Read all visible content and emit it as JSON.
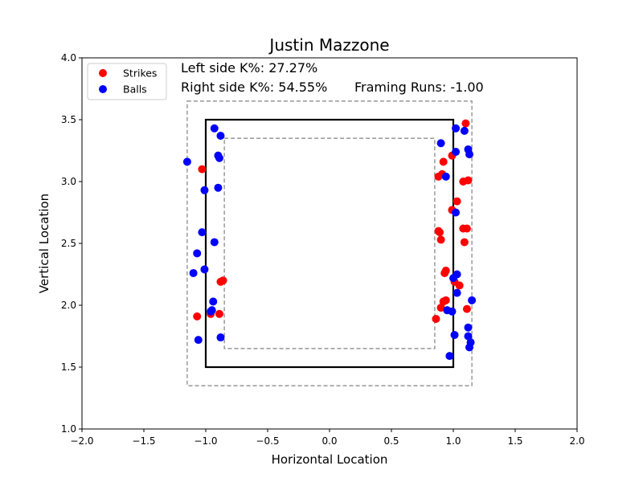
{
  "chart_data": {
    "type": "scatter",
    "title": "Justin Mazzone",
    "xlabel": "Horizontal Location",
    "ylabel": "Vertical Location",
    "xlim": [
      -2.0,
      2.0
    ],
    "ylim": [
      1.0,
      4.0
    ],
    "xticks": [
      "−2.0",
      "−1.5",
      "−1.0",
      "−0.5",
      "0.0",
      "0.5",
      "1.0",
      "1.5",
      "2.0"
    ],
    "yticks": [
      "1.0",
      "1.5",
      "2.0",
      "2.5",
      "3.0",
      "3.5",
      "4.0"
    ],
    "grid": false,
    "legend_placement": "top-left",
    "annotations": {
      "left_k": "Left side K%: 27.27%",
      "right_k": "Right side K%: 54.55%",
      "framing": "Framing Runs: -1.00"
    },
    "strike_zone": {
      "x": [
        -1.0,
        1.0
      ],
      "y": [
        1.5,
        3.5
      ]
    },
    "outer_zone": {
      "x": [
        -1.15,
        1.15
      ],
      "y": [
        1.35,
        3.65
      ]
    },
    "inner_zone": {
      "x": [
        -0.85,
        0.85
      ],
      "y": [
        1.65,
        3.35
      ]
    },
    "series": [
      {
        "name": "Strikes",
        "color": "#ff0000",
        "points": [
          [
            -1.03,
            3.1
          ],
          [
            -0.88,
            2.19
          ],
          [
            -0.86,
            2.2
          ],
          [
            -1.07,
            1.91
          ],
          [
            -0.96,
            1.93
          ],
          [
            -0.89,
            1.93
          ],
          [
            1.1,
            3.47
          ],
          [
            0.92,
            3.16
          ],
          [
            0.99,
            3.21
          ],
          [
            0.91,
            3.06
          ],
          [
            0.88,
            3.04
          ],
          [
            1.08,
            3.0
          ],
          [
            1.12,
            3.01
          ],
          [
            1.03,
            2.84
          ],
          [
            0.99,
            2.77
          ],
          [
            1.08,
            2.62
          ],
          [
            1.11,
            2.62
          ],
          [
            0.88,
            2.6
          ],
          [
            0.89,
            2.59
          ],
          [
            0.9,
            2.53
          ],
          [
            1.09,
            2.51
          ],
          [
            0.94,
            2.28
          ],
          [
            0.93,
            2.26
          ],
          [
            1.01,
            2.19
          ],
          [
            1.05,
            2.16
          ],
          [
            0.94,
            2.04
          ],
          [
            0.92,
            2.03
          ],
          [
            0.9,
            1.98
          ],
          [
            1.11,
            1.97
          ],
          [
            0.86,
            1.89
          ]
        ]
      },
      {
        "name": "Balls",
        "color": "#0000ff",
        "points": [
          [
            -1.15,
            3.16
          ],
          [
            -0.93,
            3.43
          ],
          [
            -0.88,
            3.37
          ],
          [
            -0.9,
            3.21
          ],
          [
            -0.89,
            3.19
          ],
          [
            -1.01,
            2.93
          ],
          [
            -0.9,
            2.95
          ],
          [
            -1.03,
            2.59
          ],
          [
            -0.93,
            2.51
          ],
          [
            -1.07,
            2.42
          ],
          [
            -1.1,
            2.26
          ],
          [
            -1.01,
            2.29
          ],
          [
            -0.95,
            1.96
          ],
          [
            -0.94,
            2.03
          ],
          [
            -0.96,
            1.95
          ],
          [
            -0.88,
            1.74
          ],
          [
            -1.06,
            1.72
          ],
          [
            1.02,
            3.43
          ],
          [
            1.09,
            3.41
          ],
          [
            0.9,
            3.31
          ],
          [
            1.02,
            3.24
          ],
          [
            1.12,
            3.26
          ],
          [
            1.13,
            3.22
          ],
          [
            0.94,
            3.04
          ],
          [
            1.02,
            2.75
          ],
          [
            1.03,
            2.25
          ],
          [
            1.0,
            2.22
          ],
          [
            1.03,
            2.1
          ],
          [
            0.95,
            1.96
          ],
          [
            0.99,
            1.95
          ],
          [
            1.15,
            2.04
          ],
          [
            1.12,
            1.82
          ],
          [
            1.12,
            1.75
          ],
          [
            1.14,
            1.7
          ],
          [
            1.13,
            1.66
          ],
          [
            1.01,
            1.76
          ],
          [
            0.97,
            1.59
          ]
        ]
      }
    ]
  }
}
